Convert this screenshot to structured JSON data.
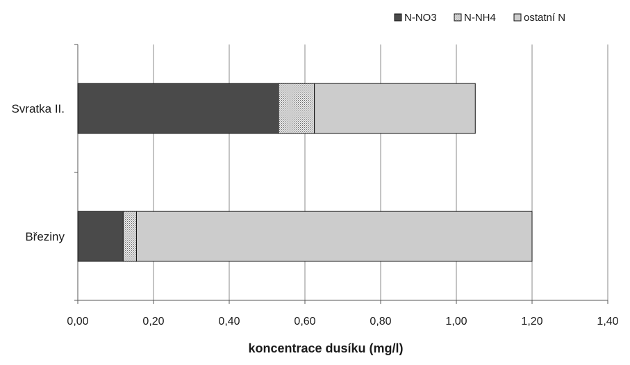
{
  "chart_data": {
    "type": "bar",
    "orientation": "horizontal",
    "stacked": true,
    "categories": [
      "Svratka II.",
      "Březiny"
    ],
    "series": [
      {
        "name": "N-NO3",
        "values": [
          0.53,
          0.12
        ],
        "color": "#4a4a4a",
        "pattern": "solid"
      },
      {
        "name": "N-NH4",
        "values": [
          0.095,
          0.035
        ],
        "color": "#c8c8c8",
        "pattern": "dotted"
      },
      {
        "name": "ostatní N",
        "values": [
          0.425,
          1.045
        ],
        "color": "#cccccc",
        "pattern": "solid"
      }
    ],
    "xlabel": "koncentrace dusíku (mg/l)",
    "ylabel": "",
    "xlim": [
      0,
      1.4
    ],
    "xticks": [
      0,
      0.2,
      0.4,
      0.6,
      0.8,
      1.0,
      1.2,
      1.4
    ],
    "xtick_labels": [
      "0,00",
      "0,20",
      "0,40",
      "0,60",
      "0,80",
      "1,00",
      "1,20",
      "1,40"
    ],
    "grid": "vertical",
    "legend_position": "top-right"
  }
}
